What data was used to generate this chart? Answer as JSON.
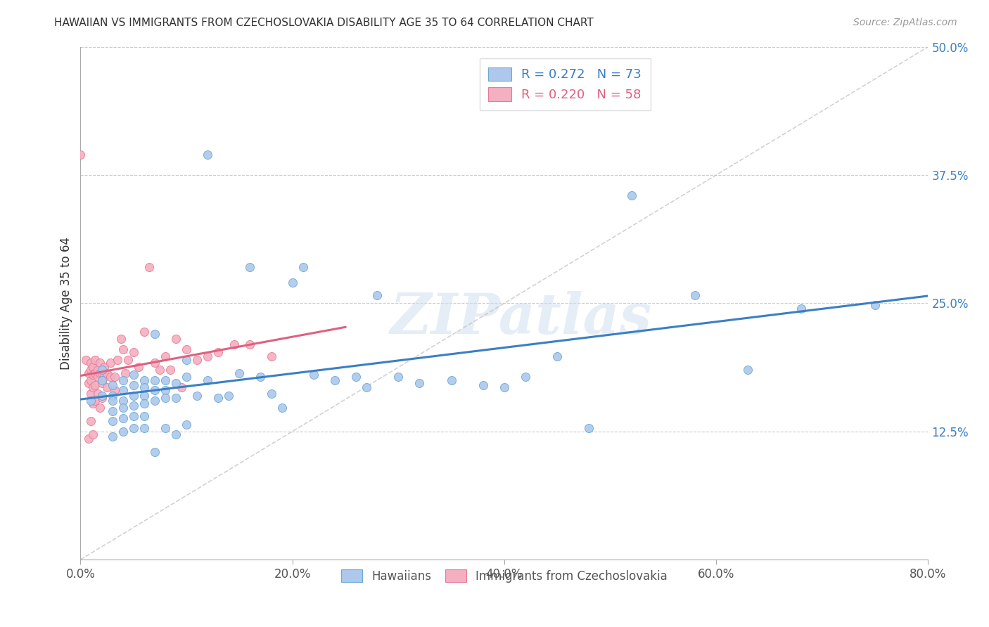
{
  "title": "HAWAIIAN VS IMMIGRANTS FROM CZECHOSLOVAKIA DISABILITY AGE 35 TO 64 CORRELATION CHART",
  "source": "Source: ZipAtlas.com",
  "ylabel": "Disability Age 35 to 64",
  "xlim": [
    0.0,
    0.8
  ],
  "ylim": [
    0.0,
    0.5
  ],
  "xticks": [
    0.0,
    0.2,
    0.4,
    0.6,
    0.8
  ],
  "yticks": [
    0.125,
    0.25,
    0.375,
    0.5
  ],
  "ytick_labels": [
    "12.5%",
    "25.0%",
    "37.5%",
    "50.0%"
  ],
  "xtick_labels": [
    "0.0%",
    "20.0%",
    "40.0%",
    "60.0%",
    "80.0%"
  ],
  "hawaiians_color": "#adc8ec",
  "hawaiians_edge_color": "#6aaad4",
  "immigrants_color": "#f4afc0",
  "immigrants_edge_color": "#e87a96",
  "hawaiians_line_color": "#3b7fc4",
  "immigrants_line_color": "#e06080",
  "identity_line_color": "#c0c0c0",
  "R_hawaiians": 0.272,
  "N_hawaiians": 73,
  "R_immigrants": 0.22,
  "N_immigrants": 58,
  "legend_labels": [
    "Hawaiians",
    "Immigrants from Czechoslovakia"
  ],
  "background_color": "#ffffff",
  "watermark_text": "ZIPatlas",
  "hawaiians_x": [
    0.01,
    0.02,
    0.02,
    0.02,
    0.03,
    0.03,
    0.03,
    0.03,
    0.03,
    0.03,
    0.04,
    0.04,
    0.04,
    0.04,
    0.04,
    0.04,
    0.05,
    0.05,
    0.05,
    0.05,
    0.05,
    0.05,
    0.06,
    0.06,
    0.06,
    0.06,
    0.06,
    0.06,
    0.07,
    0.07,
    0.07,
    0.07,
    0.07,
    0.08,
    0.08,
    0.08,
    0.08,
    0.09,
    0.09,
    0.09,
    0.1,
    0.1,
    0.1,
    0.11,
    0.12,
    0.12,
    0.13,
    0.14,
    0.15,
    0.16,
    0.17,
    0.18,
    0.19,
    0.2,
    0.21,
    0.22,
    0.24,
    0.26,
    0.27,
    0.28,
    0.3,
    0.32,
    0.35,
    0.38,
    0.4,
    0.42,
    0.45,
    0.48,
    0.52,
    0.58,
    0.63,
    0.68,
    0.75
  ],
  "hawaiians_y": [
    0.155,
    0.185,
    0.175,
    0.16,
    0.17,
    0.16,
    0.155,
    0.145,
    0.135,
    0.12,
    0.175,
    0.165,
    0.155,
    0.148,
    0.138,
    0.125,
    0.18,
    0.17,
    0.16,
    0.15,
    0.14,
    0.128,
    0.175,
    0.168,
    0.16,
    0.152,
    0.14,
    0.128,
    0.22,
    0.175,
    0.165,
    0.155,
    0.105,
    0.175,
    0.165,
    0.158,
    0.128,
    0.172,
    0.158,
    0.122,
    0.195,
    0.178,
    0.132,
    0.16,
    0.395,
    0.175,
    0.158,
    0.16,
    0.182,
    0.285,
    0.178,
    0.162,
    0.148,
    0.27,
    0.285,
    0.18,
    0.175,
    0.178,
    0.168,
    0.258,
    0.178,
    0.172,
    0.175,
    0.17,
    0.168,
    0.178,
    0.198,
    0.128,
    0.355,
    0.258,
    0.185,
    0.245,
    0.248
  ],
  "immigrants_x": [
    0.0,
    0.005,
    0.008,
    0.008,
    0.008,
    0.01,
    0.01,
    0.01,
    0.01,
    0.01,
    0.012,
    0.012,
    0.012,
    0.012,
    0.012,
    0.014,
    0.014,
    0.014,
    0.014,
    0.016,
    0.016,
    0.016,
    0.018,
    0.018,
    0.018,
    0.02,
    0.02,
    0.02,
    0.022,
    0.022,
    0.025,
    0.025,
    0.028,
    0.028,
    0.032,
    0.032,
    0.035,
    0.038,
    0.04,
    0.042,
    0.045,
    0.05,
    0.055,
    0.06,
    0.065,
    0.07,
    0.075,
    0.08,
    0.085,
    0.09,
    0.095,
    0.1,
    0.11,
    0.12,
    0.13,
    0.145,
    0.16,
    0.18
  ],
  "immigrants_y": [
    0.395,
    0.195,
    0.182,
    0.172,
    0.118,
    0.192,
    0.185,
    0.175,
    0.162,
    0.135,
    0.188,
    0.18,
    0.168,
    0.152,
    0.122,
    0.195,
    0.182,
    0.17,
    0.155,
    0.185,
    0.178,
    0.162,
    0.192,
    0.182,
    0.148,
    0.182,
    0.172,
    0.158,
    0.188,
    0.178,
    0.182,
    0.168,
    0.192,
    0.178,
    0.178,
    0.165,
    0.195,
    0.215,
    0.205,
    0.182,
    0.195,
    0.202,
    0.188,
    0.222,
    0.285,
    0.192,
    0.185,
    0.198,
    0.185,
    0.215,
    0.168,
    0.205,
    0.195,
    0.198,
    0.202,
    0.21,
    0.21,
    0.198
  ]
}
